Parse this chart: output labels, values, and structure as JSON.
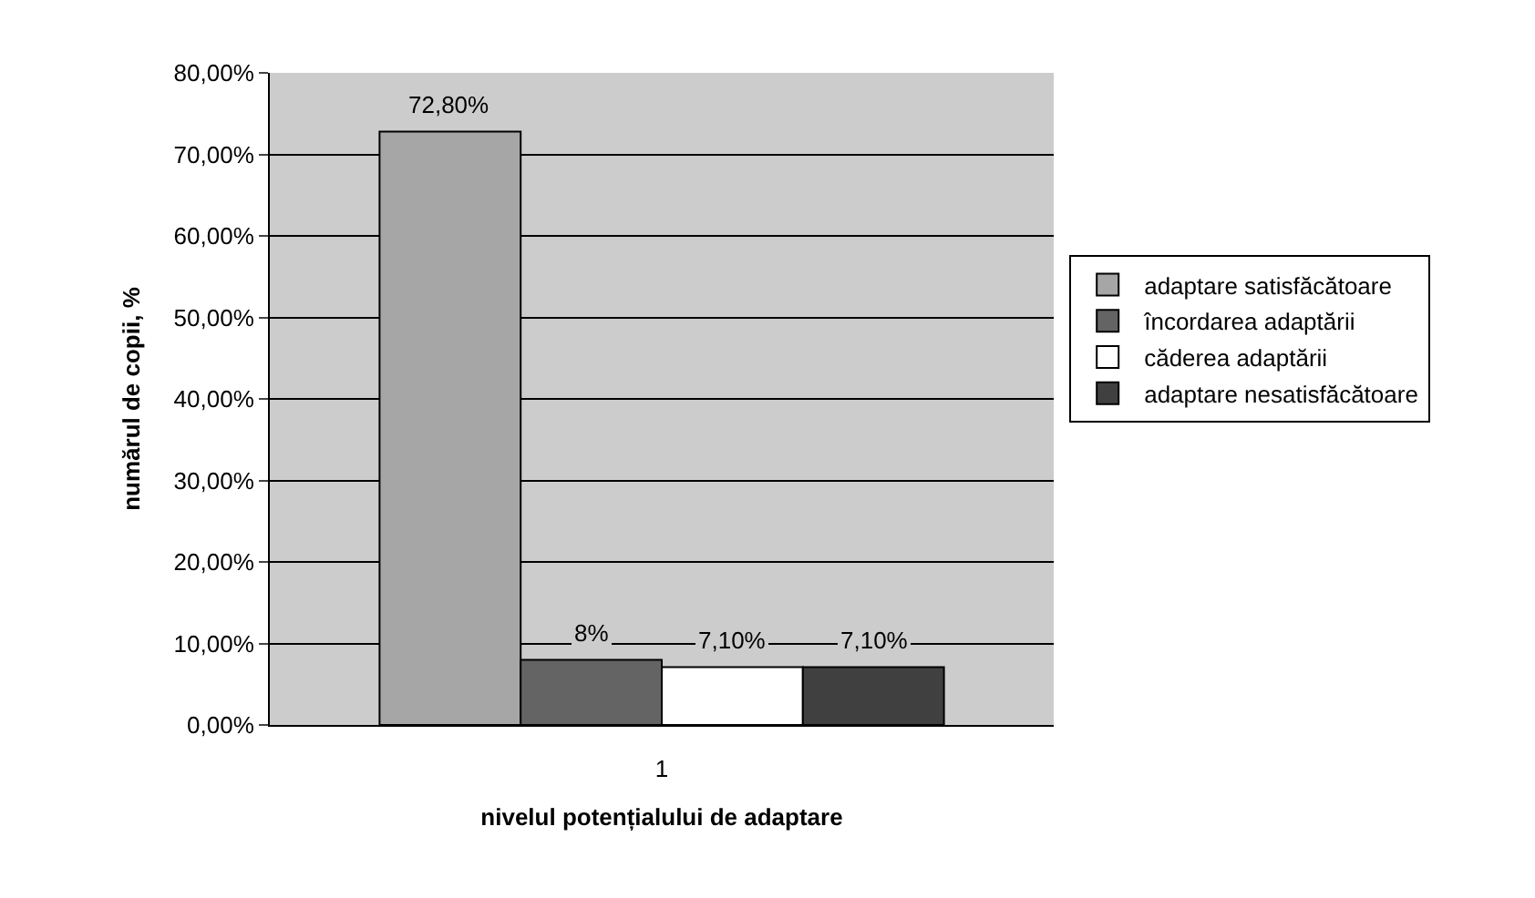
{
  "chart_data": {
    "type": "bar",
    "xlabel": "nivelul potențialului de adaptare",
    "ylabel": "numărul de copii, %",
    "categories": [
      "1"
    ],
    "series": [
      {
        "name": "adaptare satisfăcătoare",
        "color": "#a6a6a6",
        "values": [
          72.8
        ],
        "value_labels": [
          "72,80%"
        ]
      },
      {
        "name": "încordarea adaptării",
        "color": "#646464",
        "values": [
          8
        ],
        "value_labels": [
          "8%"
        ]
      },
      {
        "name": "căderea adaptării",
        "color": "#ffffff",
        "values": [
          7.1
        ],
        "value_labels": [
          "7,10%"
        ]
      },
      {
        "name": "adaptare nesatisfăcătoare",
        "color": "#404040",
        "values": [
          7.1
        ],
        "value_labels": [
          "7,10%"
        ]
      }
    ],
    "ylim": [
      0,
      80
    ],
    "yticks": [
      {
        "value": 0,
        "label": "0,00%"
      },
      {
        "value": 10,
        "label": "10,00%"
      },
      {
        "value": 20,
        "label": "20,00%"
      },
      {
        "value": 30,
        "label": "30,00%"
      },
      {
        "value": 40,
        "label": "40,00%"
      },
      {
        "value": 50,
        "label": "50,00%"
      },
      {
        "value": 60,
        "label": "60,00%"
      },
      {
        "value": 70,
        "label": "70,00%"
      },
      {
        "value": 80,
        "label": "80,00%"
      }
    ],
    "grid": "y",
    "legend": "right"
  }
}
